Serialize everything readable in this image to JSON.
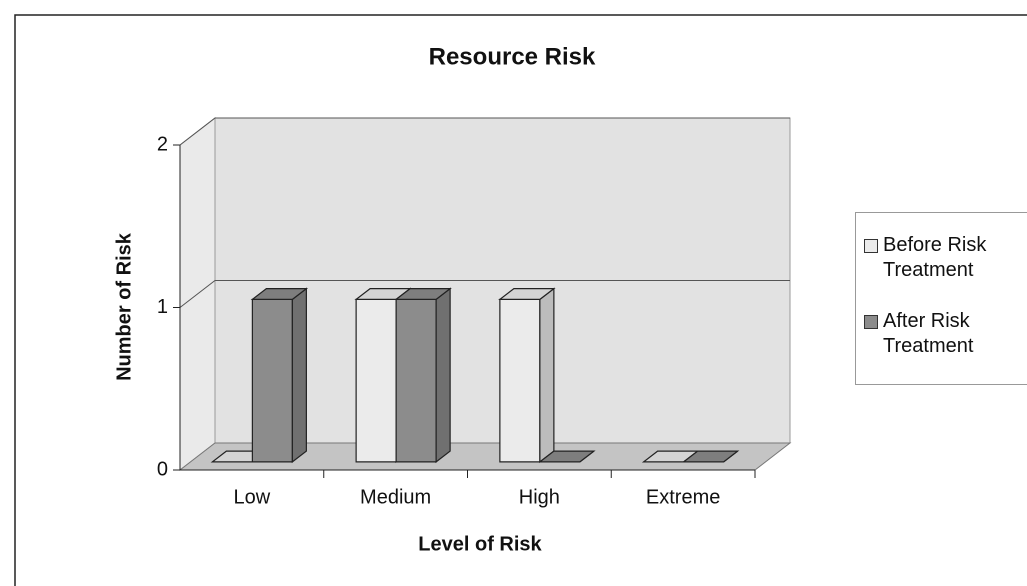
{
  "chart_data": {
    "type": "bar3d",
    "title": "Resource Risk",
    "x_label": "Level of Risk",
    "y_label": "Number of Risk",
    "categories": [
      "Low",
      "Medium",
      "High",
      "Extreme"
    ],
    "series": [
      {
        "name": "Before Risk Treatment",
        "color": "#ebebeb",
        "values": [
          0,
          1,
          1,
          0
        ]
      },
      {
        "name": "After Risk Treatment",
        "color": "#8c8c8c",
        "values": [
          1,
          1,
          0,
          0
        ]
      }
    ],
    "ylim": [
      0,
      2
    ],
    "yticks": [
      0,
      1,
      2
    ],
    "grid": true,
    "legend": "right"
  }
}
